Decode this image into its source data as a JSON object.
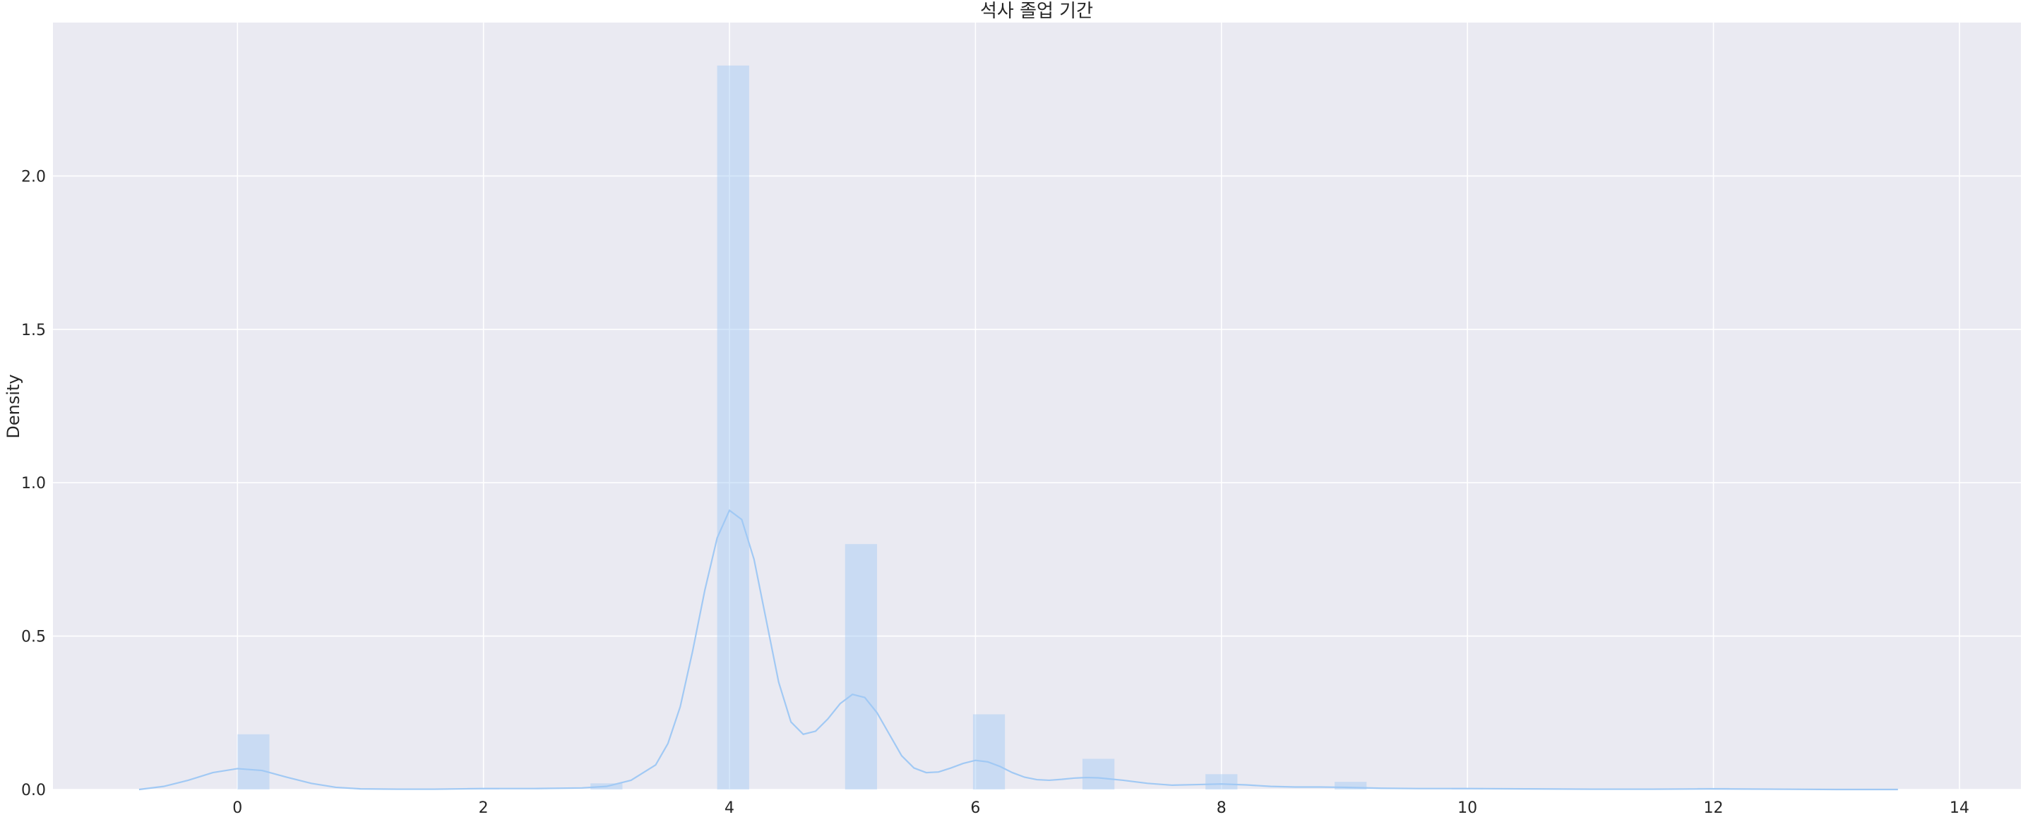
{
  "chart_data": {
    "type": "bar",
    "title": "석사 졸업 기간",
    "xlabel": "",
    "ylabel": "Density",
    "xlim": [
      -1.5,
      14.5
    ],
    "ylim": [
      0,
      2.5
    ],
    "grid": true,
    "colors": {
      "background": "#eaeaf2",
      "grid": "#ffffff",
      "bar_fill": "#a1c9f4",
      "kde_line": "#a1c9f4"
    },
    "x_ticks": [
      0,
      2,
      4,
      6,
      8,
      10,
      12,
      14
    ],
    "y_ticks": [
      0.0,
      0.5,
      1.0,
      1.5,
      2.0
    ],
    "x_tick_labels": [
      "0",
      "2",
      "4",
      "6",
      "8",
      "10",
      "12",
      "14"
    ],
    "y_tick_labels": [
      "0.0",
      "0.5",
      "1.0",
      "1.5",
      "2.0"
    ],
    "histogram": {
      "bin_width": 0.26,
      "bars": [
        {
          "x": 0.13,
          "density": 0.18
        },
        {
          "x": 2.0,
          "density": 0.005
        },
        {
          "x": 3.0,
          "density": 0.02
        },
        {
          "x": 4.03,
          "density": 2.36
        },
        {
          "x": 5.07,
          "density": 0.8
        },
        {
          "x": 6.11,
          "density": 0.245
        },
        {
          "x": 7.0,
          "density": 0.1
        },
        {
          "x": 8.0,
          "density": 0.05
        },
        {
          "x": 9.05,
          "density": 0.025
        },
        {
          "x": 10.0,
          "density": 0.005
        },
        {
          "x": 12.0,
          "density": 0.005
        }
      ]
    },
    "kde": {
      "x": [
        -0.8,
        -0.6,
        -0.4,
        -0.2,
        0.0,
        0.2,
        0.4,
        0.6,
        0.8,
        1.0,
        1.3,
        1.6,
        2.0,
        2.4,
        2.8,
        3.0,
        3.2,
        3.4,
        3.5,
        3.6,
        3.7,
        3.8,
        3.9,
        4.0,
        4.1,
        4.2,
        4.3,
        4.4,
        4.5,
        4.6,
        4.7,
        4.8,
        4.9,
        5.0,
        5.1,
        5.2,
        5.3,
        5.4,
        5.5,
        5.6,
        5.7,
        5.8,
        5.9,
        6.0,
        6.1,
        6.2,
        6.3,
        6.4,
        6.5,
        6.6,
        6.7,
        6.8,
        6.9,
        7.0,
        7.2,
        7.4,
        7.6,
        7.8,
        8.0,
        8.2,
        8.4,
        8.6,
        8.8,
        9.0,
        9.3,
        9.6,
        10.0,
        10.5,
        11.0,
        11.5,
        12.0,
        12.5,
        13.0,
        13.5
      ],
      "y": [
        0.0,
        0.01,
        0.03,
        0.055,
        0.068,
        0.062,
        0.04,
        0.02,
        0.007,
        0.002,
        0.001,
        0.001,
        0.003,
        0.003,
        0.005,
        0.01,
        0.03,
        0.08,
        0.15,
        0.27,
        0.45,
        0.65,
        0.82,
        0.91,
        0.88,
        0.75,
        0.55,
        0.35,
        0.22,
        0.18,
        0.19,
        0.23,
        0.28,
        0.31,
        0.3,
        0.25,
        0.18,
        0.11,
        0.07,
        0.055,
        0.057,
        0.07,
        0.085,
        0.095,
        0.09,
        0.075,
        0.055,
        0.04,
        0.032,
        0.03,
        0.033,
        0.037,
        0.039,
        0.038,
        0.03,
        0.02,
        0.014,
        0.016,
        0.018,
        0.015,
        0.01,
        0.008,
        0.008,
        0.007,
        0.004,
        0.003,
        0.003,
        0.002,
        0.001,
        0.001,
        0.002,
        0.001,
        0.0,
        0.0
      ]
    }
  }
}
